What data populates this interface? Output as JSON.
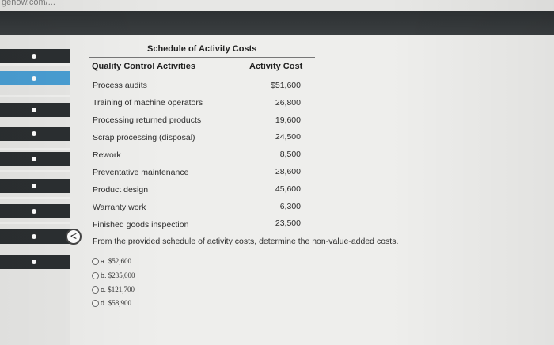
{
  "browser": {
    "url_fragment": "gehow.com/..."
  },
  "schedule": {
    "title": "Schedule of Activity Costs",
    "headers": {
      "activity": "Quality Control Activities",
      "cost": "Activity Cost"
    },
    "rows": [
      {
        "activity": "Process audits",
        "cost": "$51,600"
      },
      {
        "activity": "Training of machine operators",
        "cost": "26,800"
      },
      {
        "activity": "Processing returned products",
        "cost": "19,600"
      },
      {
        "activity": "Scrap processing (disposal)",
        "cost": "24,500"
      },
      {
        "activity": "Rework",
        "cost": "8,500"
      },
      {
        "activity": "Preventative maintenance",
        "cost": "28,600"
      },
      {
        "activity": "Product design",
        "cost": "45,600"
      },
      {
        "activity": "Warranty work",
        "cost": "6,300"
      },
      {
        "activity": "Finished goods inspection",
        "cost": "23,500"
      }
    ]
  },
  "question": {
    "text": "From the provided schedule of activity costs, determine the non-value-added costs.",
    "options": [
      {
        "letter": "a.",
        "value": "$52,600"
      },
      {
        "letter": "b.",
        "value": "$235,000"
      },
      {
        "letter": "c.",
        "value": "$121,700"
      },
      {
        "letter": "d.",
        "value": "$58,900"
      }
    ]
  },
  "nav": {
    "back_glyph": "<"
  }
}
